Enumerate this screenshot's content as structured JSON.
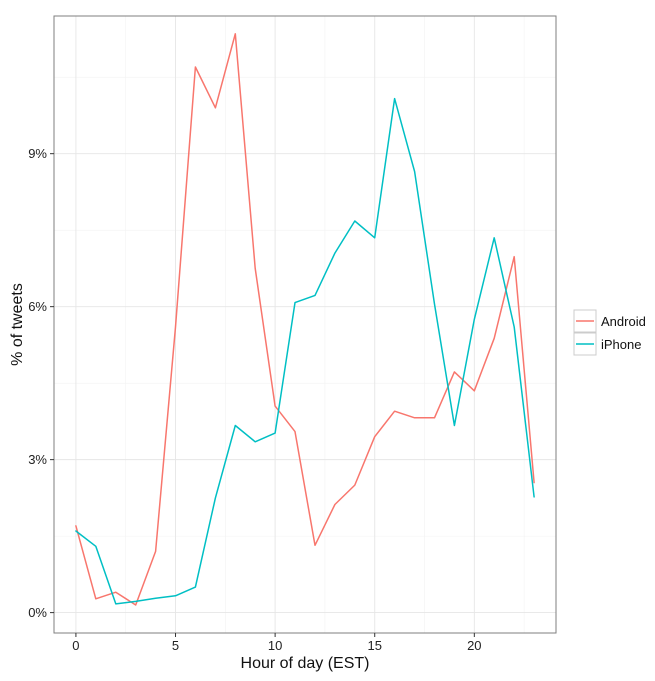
{
  "chart_data": {
    "type": "line",
    "xlabel": "Hour of day (EST)",
    "ylabel": "% of tweets",
    "xlim": [
      -1.1,
      24.1
    ],
    "ylim": [
      -0.4,
      11.7
    ],
    "x_ticks": [
      0,
      5,
      10,
      15,
      20
    ],
    "x_tick_labels": [
      "0",
      "5",
      "10",
      "15",
      "20"
    ],
    "y_ticks": [
      0,
      3,
      6,
      9
    ],
    "y_tick_labels": [
      "0%",
      "3%",
      "6%",
      "9%"
    ],
    "grid": true,
    "legend_position": "right",
    "x": [
      0,
      1,
      2,
      3,
      4,
      5,
      6,
      7,
      8,
      9,
      10,
      11,
      12,
      13,
      14,
      15,
      16,
      17,
      18,
      19,
      20,
      21,
      22,
      23
    ],
    "series": [
      {
        "name": "Android",
        "color": "#F8766D",
        "values": [
          1.7,
          0.27,
          0.4,
          0.15,
          1.2,
          5.6,
          10.7,
          9.9,
          11.35,
          6.75,
          4.05,
          3.55,
          1.32,
          2.12,
          2.5,
          3.45,
          3.95,
          3.82,
          3.82,
          4.72,
          4.35,
          5.38,
          6.98,
          2.55
        ]
      },
      {
        "name": "iPhone",
        "color": "#00BFC4",
        "values": [
          1.6,
          1.3,
          0.17,
          0.22,
          0.28,
          0.33,
          0.5,
          2.25,
          3.67,
          3.35,
          3.52,
          6.08,
          6.22,
          7.05,
          7.68,
          7.35,
          10.08,
          8.65,
          6.05,
          3.67,
          5.75,
          7.35,
          5.6,
          2.27
        ]
      }
    ]
  }
}
